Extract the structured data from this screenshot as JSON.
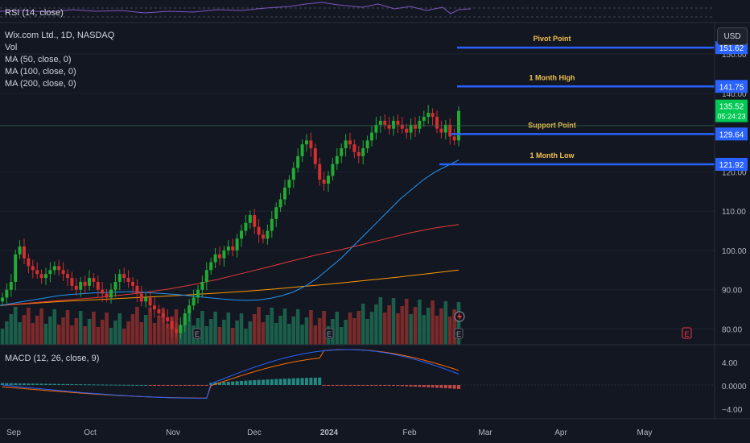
{
  "chart_data": {
    "type": "candlestick",
    "symbol": "Wix.com Ltd., 1D, NASDAQ",
    "indicators": [
      "Vol",
      "MA (50, close, 0)",
      "MA (100, close, 0)",
      "MA (200, close, 0)"
    ],
    "currency": "USD",
    "price_axis": {
      "ticks": [
        "150.00",
        "140.00",
        "120.00",
        "110.00",
        "100.00",
        "90.00",
        "80.00"
      ],
      "ylim": [
        76,
        158
      ]
    },
    "time_axis": {
      "ticks": [
        "Sep",
        "Oct",
        "Nov",
        "Dec",
        "2024",
        "Feb",
        "Mar",
        "Apr",
        "May"
      ]
    },
    "last_price": {
      "value": "135.52",
      "countdown": "05:24:23",
      "color": "#089981"
    },
    "levels": [
      {
        "label": "Pivot Point",
        "value": 151.62,
        "tag": "151.62"
      },
      {
        "label": "1 Month High",
        "value": 141.75,
        "tag": "141.75"
      },
      {
        "label": "Support Point",
        "value": 129.64,
        "tag": "129.64"
      },
      {
        "label": "1 Month Low",
        "value": 121.92,
        "tag": "121.92"
      }
    ],
    "close_series_approx": [
      88,
      90,
      92,
      99,
      101,
      98,
      96,
      95,
      94,
      93,
      94,
      95,
      96,
      95,
      94,
      93,
      91,
      90,
      92,
      91,
      93,
      92,
      90,
      89,
      88,
      90,
      92,
      94,
      93,
      92,
      91,
      89,
      87,
      88,
      86,
      85,
      84,
      83,
      82,
      80,
      79,
      81,
      84,
      86,
      88,
      90,
      92,
      95,
      97,
      99,
      98,
      100,
      101,
      100,
      103,
      105,
      107,
      109,
      106,
      104,
      103,
      105,
      108,
      111,
      113,
      116,
      118,
      121,
      124,
      127,
      128,
      126,
      122,
      118,
      117,
      119,
      122,
      124,
      126,
      128,
      127,
      125,
      124,
      126,
      128,
      130,
      132,
      133,
      132,
      131,
      133,
      132,
      131,
      130,
      132,
      131,
      133,
      134,
      135,
      134,
      131,
      130,
      132,
      129,
      128,
      135.52
    ],
    "ma50_approx": [
      86,
      86.5,
      87,
      87.5,
      88,
      88.5,
      88.8,
      89,
      89.2,
      89.3,
      89.4,
      89.5,
      89.4,
      89.2,
      89,
      88.8,
      88.5,
      88.2,
      87.9,
      87.6,
      87.4,
      87.3,
      87.4,
      87.8,
      88.5,
      89.5,
      91,
      93,
      95.5,
      98,
      101,
      104,
      107,
      110,
      113,
      115.5,
      118,
      120,
      121.5,
      123
    ],
    "ma100_approx": [
      86,
      86.5,
      87,
      87.5,
      88,
      88.6,
      89.3,
      90.2,
      91.3,
      92.6,
      94.1,
      95.6,
      97.2,
      98.7,
      100,
      101.5,
      103,
      104.5,
      105.7,
      106.6
    ],
    "ma200_approx": [
      86,
      86.5,
      87,
      87.4,
      87.8,
      88.2,
      88.6,
      89.1,
      89.6,
      90.2,
      90.9,
      91.6,
      92.4,
      93.2,
      94.1,
      95
    ],
    "volume_panel": true,
    "rsi": {
      "label": "RSI (14, close)"
    },
    "macd": {
      "label": "MACD (12, 26, close, 9)",
      "ticks": [
        "4.00",
        "0.0000",
        "−4.00"
      ]
    }
  },
  "colors": {
    "background": "#131722",
    "up": "#22ab34",
    "down": "#d32f2f",
    "level_line": "#2962ff",
    "level_label": "#f2c14e",
    "ma50": "#2196f3",
    "ma100": "#e53935",
    "ma200": "#ff9800",
    "grid": "#1f2430"
  },
  "icons": {
    "earnings": "E",
    "dividends": "lightning-icon"
  }
}
